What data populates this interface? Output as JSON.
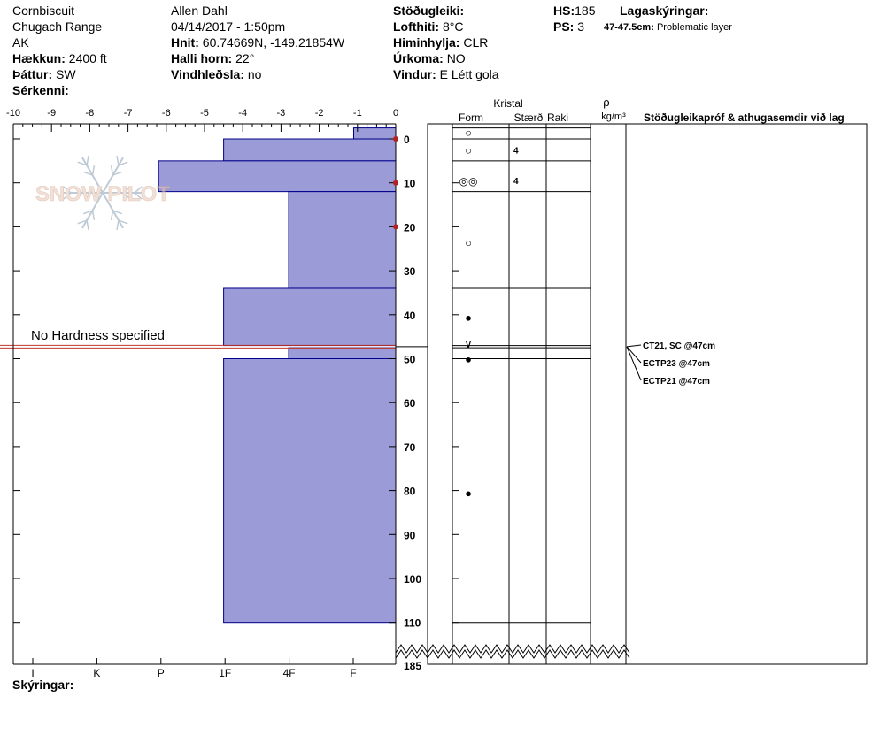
{
  "site": {
    "name": "Cornbiscuit",
    "range": "Chugach Range",
    "state": "AK",
    "elevation_label": "Hækkun:",
    "elevation": "2400 ft",
    "aspect_label": "Þáttur:",
    "aspect": "SW",
    "features_label": "Sérkenni:"
  },
  "observer": {
    "name": "Allen Dahl",
    "datetime": "04/14/2017 - 1:50pm",
    "coords_label": "Hnit:",
    "coords": "60.74669N, -149.21854W",
    "slope_label": "Halli horn:",
    "slope": "22°",
    "wind_loading_label": "Vindhleðsla:",
    "wind_loading": "no"
  },
  "weather": {
    "stability_label": "Stöðugleiki:",
    "stability": "",
    "air_temp_label": "Lofthiti:",
    "air_temp": "8°C",
    "sky_label": "Himinhylja:",
    "sky": "CLR",
    "precip_label": "Úrkoma:",
    "precip": "NO",
    "wind_label": "Vindur:",
    "wind": "E Létt gola"
  },
  "snowpack": {
    "hs_label": "HS:",
    "hs": "185",
    "ps_label": "PS:",
    "ps": "3",
    "legend_label": "Lagaskýringar:",
    "layer_note_depth": "47-47.5cm:",
    "layer_note_text": "Problematic layer"
  },
  "footer": {
    "notes_label": "Skýringar:"
  },
  "watermark": "SNOW PILOT",
  "no_hardness_text": "No Hardness specified",
  "colors": {
    "bar_fill": "#9b9bd7",
    "bar_stroke": "#00008b",
    "temp_marker": "#b22222",
    "weak_layer": "#c0392b"
  },
  "chart_data": {
    "type": "bar",
    "orientation": "horizontal",
    "temp_axis": {
      "ticks": [
        "-10",
        "-9",
        "-8",
        "-7",
        "-6",
        "-5",
        "-4",
        "-3",
        "-2",
        "-1",
        "0"
      ],
      "min": -10,
      "max": 0
    },
    "depth_axis": {
      "ticks": [
        "0",
        "10",
        "20",
        "30",
        "40",
        "50",
        "60",
        "70",
        "80",
        "90",
        "100",
        "110"
      ],
      "bottom_label": "185",
      "min": 0,
      "max": 120
    },
    "hardness_axis": {
      "ticks": [
        "I",
        "K",
        "P",
        "1F",
        "4F",
        "F"
      ]
    },
    "temperature_profile": [
      {
        "depth": 0,
        "temp": 0
      },
      {
        "depth": 10,
        "temp": 0
      },
      {
        "depth": 20,
        "temp": 0
      }
    ],
    "layers": [
      {
        "top": -2.5,
        "bottom": 0,
        "hardness": 1.1
      },
      {
        "top": 0,
        "bottom": 5,
        "hardness": 4.5
      },
      {
        "top": 5,
        "bottom": 12,
        "hardness": 6.2
      },
      {
        "top": 12,
        "bottom": 34,
        "hardness": 2.8
      },
      {
        "top": 34,
        "bottom": 47,
        "hardness": 4.5
      },
      {
        "top": 47,
        "bottom": 47.5,
        "hardness": 0
      },
      {
        "top": 47.5,
        "bottom": 50,
        "hardness": 2.8
      },
      {
        "top": 50,
        "bottom": 110,
        "hardness": 4.5
      }
    ],
    "weak_layer_depth": 47.25,
    "columns": {
      "crystal": "Kristal",
      "form": "Form",
      "size": "Stærð",
      "moisture": "Raki",
      "density_symbol": "ρ",
      "density_unit": "kg/m³",
      "tests": "Stöðugleikapróf & athugasemdir við lag"
    },
    "crystals": [
      {
        "depth": -1.5,
        "symbol": "○",
        "size": ""
      },
      {
        "depth": 2.5,
        "symbol": "○",
        "size": "4"
      },
      {
        "depth": 9.5,
        "symbol": "◎◎",
        "size": "4"
      },
      {
        "depth": 23.5,
        "symbol": "○",
        "size": ""
      },
      {
        "depth": 40.5,
        "symbol": "●",
        "size": ""
      },
      {
        "depth": 46.5,
        "symbol": "∨",
        "size": ""
      },
      {
        "depth": 50,
        "symbol": "●",
        "size": ""
      },
      {
        "depth": 80.5,
        "symbol": "●",
        "size": ""
      }
    ],
    "tests": [
      "CT21, SC @47cm",
      "ECTP23 @47cm",
      "ECTP21 @47cm"
    ]
  }
}
